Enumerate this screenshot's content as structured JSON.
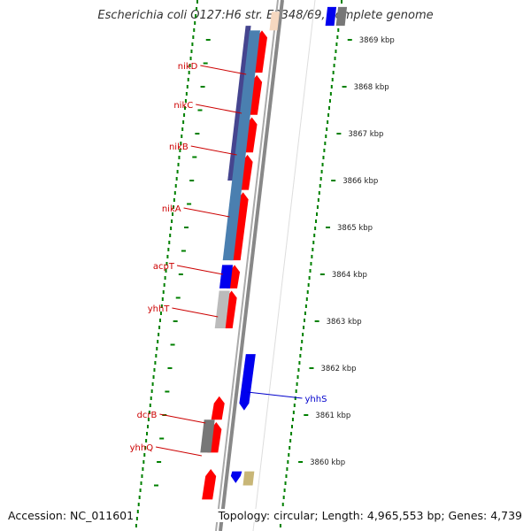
{
  "title": "Escherichia coli O127:H6 str. E2348/69, complete genome",
  "accession_text": "Accession: NC_011601",
  "summary_text": "Topology: circular; Length: 4,965,553 bp; Genes: 4,739",
  "colors": {
    "forward_gene": "#ff0000",
    "reverse_gene": "#0000ff",
    "forward_label": "#cc0000",
    "reverse_label": "#0000cc",
    "cds_blue": "#4a7fb0",
    "cds_navy": "#45458f",
    "grey_feature": "#777777",
    "light_grey_feature": "#bbbbbb",
    "tan_feature": "#c8b677",
    "peach_feature": "#f6d8c0",
    "backbone": "#888888",
    "tick": "#008000"
  },
  "ruler": {
    "unit": "kbp",
    "ticks": [
      {
        "kbp": 3869,
        "label": "3869 kbp"
      },
      {
        "kbp": 3868,
        "label": "3868 kbp"
      },
      {
        "kbp": 3867,
        "label": "3867 kbp"
      },
      {
        "kbp": 3866,
        "label": "3866 kbp"
      },
      {
        "kbp": 3865,
        "label": "3865 kbp"
      },
      {
        "kbp": 3864,
        "label": "3864 kbp"
      },
      {
        "kbp": 3863,
        "label": "3863 kbp"
      },
      {
        "kbp": 3862,
        "label": "3862 kbp"
      },
      {
        "kbp": 3861,
        "label": "3861 kbp"
      },
      {
        "kbp": 3860,
        "label": "3860 kbp"
      }
    ]
  },
  "features": [
    {
      "track": "red",
      "start": 3868.3,
      "end": 3869.2,
      "strand": "fwd",
      "color": "#ff0000"
    },
    {
      "track": "red",
      "start": 3867.4,
      "end": 3868.25,
      "strand": "fwd",
      "color": "#ff0000"
    },
    {
      "track": "red",
      "start": 3866.6,
      "end": 3867.35,
      "strand": "fwd",
      "color": "#ff0000"
    },
    {
      "track": "red",
      "start": 3865.8,
      "end": 3866.55,
      "strand": "fwd",
      "color": "#ff0000"
    },
    {
      "track": "red",
      "start": 3864.3,
      "end": 3865.75,
      "strand": "fwd",
      "color": "#ff0000"
    },
    {
      "track": "red",
      "start": 3863.7,
      "end": 3864.2,
      "strand": "fwd",
      "color": "#ff0000"
    },
    {
      "track": "red",
      "start": 3862.85,
      "end": 3863.65,
      "strand": "fwd",
      "color": "#ff0000"
    },
    {
      "track": "red",
      "start": 3860.9,
      "end": 3861.4,
      "strand": "fwd",
      "color": "#ff0000"
    },
    {
      "track": "red",
      "start": 3860.2,
      "end": 3860.85,
      "strand": "fwd",
      "color": "#ff0000"
    },
    {
      "track": "red",
      "start": 3859.2,
      "end": 3859.85,
      "strand": "fwd",
      "color": "#ff0000"
    },
    {
      "track": "peach",
      "start": 3869.2,
      "end": 3869.6,
      "strand": "none",
      "color": "#f6d8c0"
    },
    {
      "track": "navy",
      "start": 3866.0,
      "end": 3869.3,
      "strand": "none",
      "color": "#45458f"
    },
    {
      "track": "blue",
      "start": 3864.3,
      "end": 3869.2,
      "strand": "none",
      "color": "#4a7fb0"
    },
    {
      "track": "blue",
      "start": 3863.7,
      "end": 3864.2,
      "strand": "none",
      "color": "#0000ee"
    },
    {
      "track": "blue",
      "start": 3862.85,
      "end": 3863.65,
      "strand": "none",
      "color": "#bbbbbb"
    },
    {
      "track": "blue",
      "start": 3860.2,
      "end": 3860.9,
      "strand": "none",
      "color": "#777777"
    },
    {
      "track": "rev",
      "start": 3861.1,
      "end": 3862.3,
      "strand": "rev",
      "color": "#0000ee"
    },
    {
      "track": "rev",
      "start": 3859.55,
      "end": 3859.8,
      "strand": "rev",
      "color": "#0000ee"
    },
    {
      "track": "rev2",
      "start": 3859.5,
      "end": 3859.8,
      "strand": "none",
      "color": "#c8b677"
    },
    {
      "track": "revtop",
      "start": 3869.3,
      "end": 3869.7,
      "strand": "none",
      "color": "#0000ee"
    },
    {
      "track": "revtop2",
      "start": 3869.3,
      "end": 3869.7,
      "strand": "none",
      "color": "#777777"
    }
  ],
  "gene_labels": [
    {
      "name": "nikD",
      "pos": 3868.3,
      "side": "left",
      "row": 74
    },
    {
      "name": "nikC",
      "pos": 3867.45,
      "side": "left",
      "row": 118
    },
    {
      "name": "nikB",
      "pos": 3866.6,
      "side": "left",
      "row": 165
    },
    {
      "name": "nikA",
      "pos": 3865.3,
      "side": "left",
      "row": 235
    },
    {
      "name": "acpT",
      "pos": 3864.0,
      "side": "left",
      "row": 300
    },
    {
      "name": "yhhT",
      "pos": 3863.1,
      "side": "left",
      "row": 348
    },
    {
      "name": "dcrB",
      "pos": 3860.9,
      "side": "left",
      "row": 468
    },
    {
      "name": "yhhQ",
      "pos": 3860.3,
      "side": "left",
      "row": 505
    },
    {
      "name": "yhhS",
      "pos": 3861.55,
      "side": "right",
      "row": 450
    }
  ]
}
